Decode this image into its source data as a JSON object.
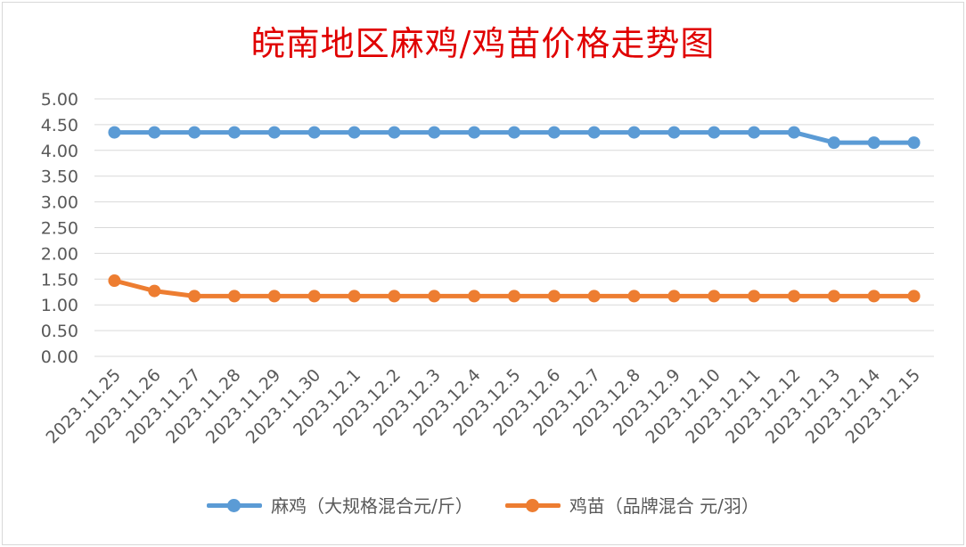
{
  "chart_data": {
    "type": "line",
    "title": "皖南地区麻鸡/鸡苗价格走势图",
    "categories": [
      "2023.11.25",
      "2023.11.26",
      "2023.11.27",
      "2023.11.28",
      "2023.11.29",
      "2023.11.30",
      "2023.12.1",
      "2023.12.2",
      "2023.12.3",
      "2023.12.4",
      "2023.12.5",
      "2023.12.6",
      "2023.12.7",
      "2023.12.8",
      "2023.12.9",
      "2023.12.10",
      "2023.12.11",
      "2023.12.12",
      "2023.12.13",
      "2023.12.14",
      "2023.12.15"
    ],
    "y_ticks": [
      "0.00",
      "0.50",
      "1.00",
      "1.50",
      "2.00",
      "2.50",
      "3.00",
      "3.50",
      "4.00",
      "4.50",
      "5.00"
    ],
    "ylim": [
      0,
      5
    ],
    "grid": true,
    "legend_position": "bottom",
    "series": [
      {
        "name": "麻鸡（大规格混合元/斤）",
        "color": "#5b9bd5",
        "values": [
          4.35,
          4.35,
          4.35,
          4.35,
          4.35,
          4.35,
          4.35,
          4.35,
          4.35,
          4.35,
          4.35,
          4.35,
          4.35,
          4.35,
          4.35,
          4.35,
          4.35,
          4.35,
          4.15,
          4.15,
          4.15
        ]
      },
      {
        "name": "鸡苗（品牌混合 元/羽）",
        "color": "#ed7d31",
        "values": [
          1.47,
          1.27,
          1.17,
          1.17,
          1.17,
          1.17,
          1.17,
          1.17,
          1.17,
          1.17,
          1.17,
          1.17,
          1.17,
          1.17,
          1.17,
          1.17,
          1.17,
          1.17,
          1.17,
          1.17,
          1.17
        ]
      }
    ]
  }
}
